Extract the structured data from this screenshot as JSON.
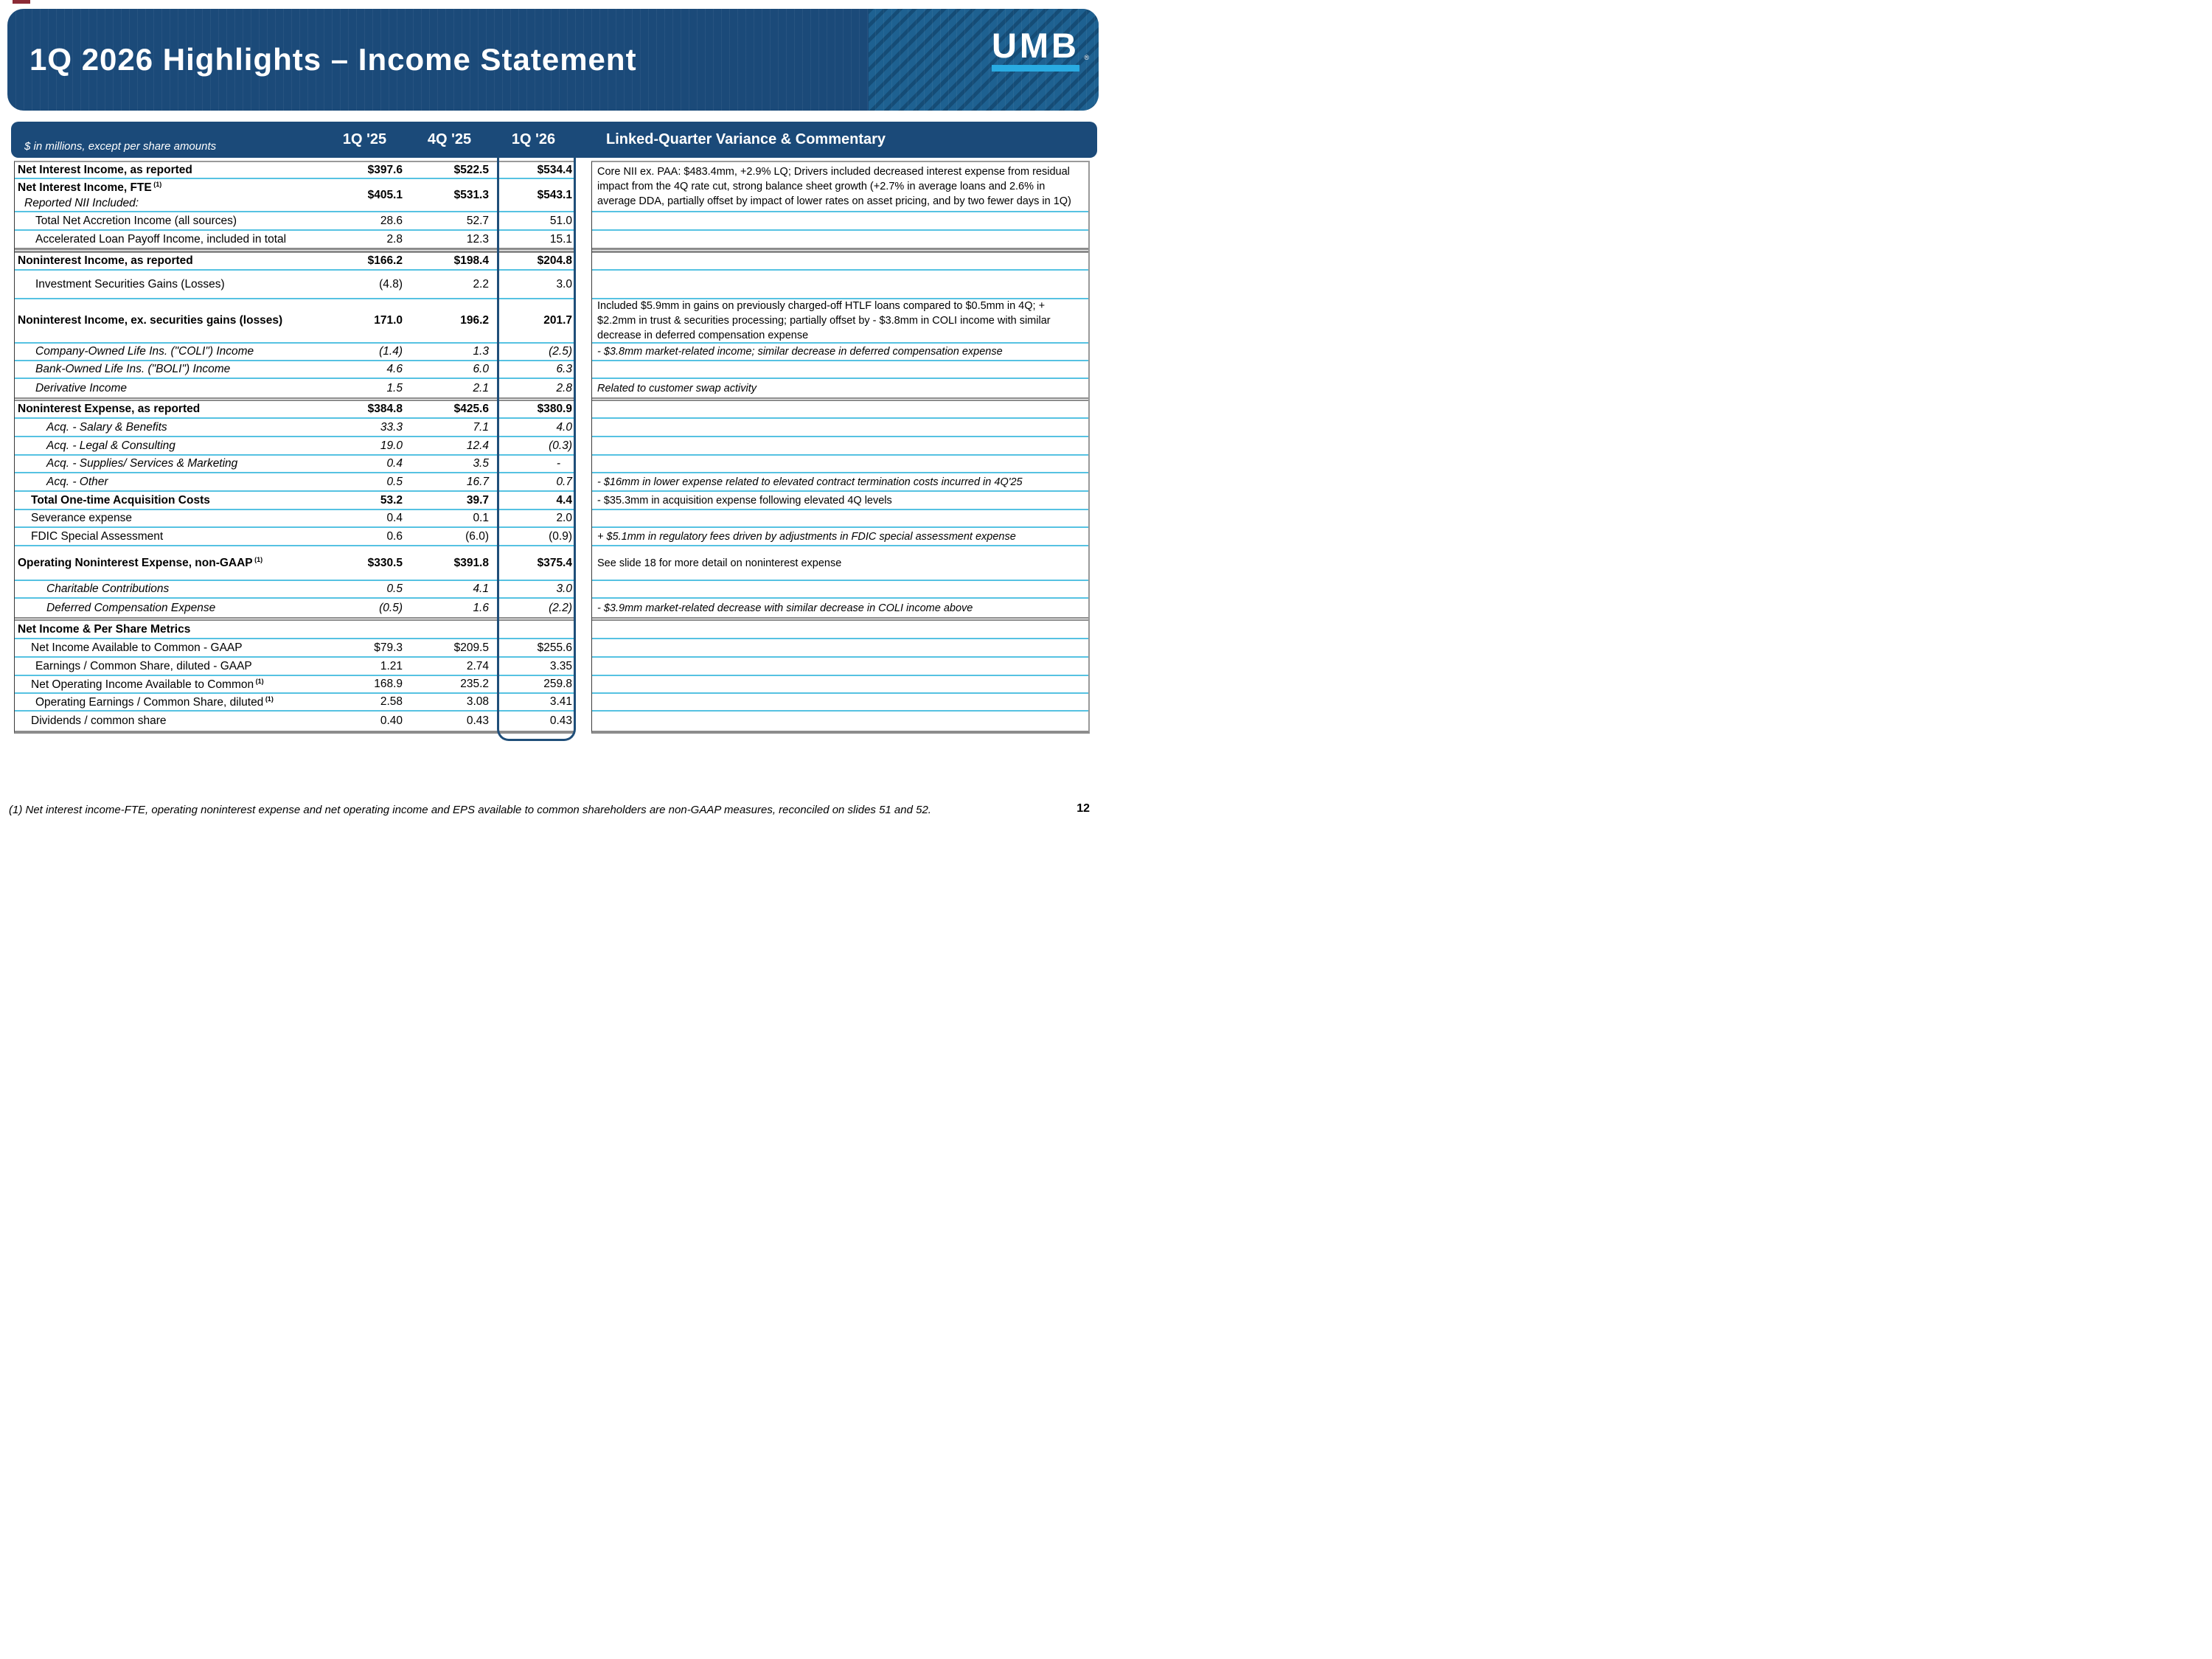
{
  "slide": {
    "title": "1Q 2026 Highlights – Income Statement",
    "logo_text": "UMB",
    "logo_registered_mark": "®",
    "page_number": "12",
    "footnote": "(1) Net interest income-FTE, operating noninterest expense and net operating income and EPS available to common shareholders are non-GAAP measures, reconciled on slides 51 and 52."
  },
  "colors": {
    "header_navy": "#1B4A79",
    "logo_panel_blue": "#1E6191",
    "logo_underline_cyan": "#29ABE2",
    "row_separator_cyan": "#56C2E2",
    "section_divider_gray": "#8C8C8C",
    "highlight_outline_navy": "#1F4E79",
    "top_accent_red": "#8C2B36"
  },
  "table": {
    "subtitle": "$ in millions, except per share amounts",
    "columns": [
      "1Q '25",
      "4Q '25",
      "1Q '26"
    ],
    "highlight_column": "1Q '26",
    "commentary_header": "Linked-Quarter Variance & Commentary",
    "rows": [
      {
        "h": 23,
        "label": "Net Interest Income, as reported",
        "bold": true,
        "indent": 0,
        "values": [
          "$397.6",
          "$522.5",
          "$534.4"
        ]
      },
      {
        "h": 45,
        "label": "Net Interest Income, FTE",
        "sup": "(1)",
        "sublabel": "Reported NII Included:",
        "bold": true,
        "indent": 0,
        "values": [
          "$405.1",
          "$531.3",
          "$543.1"
        ]
      },
      {
        "h": 25,
        "label": "Total Net Accretion Income (all sources)",
        "indent": 3,
        "values": [
          "28.6",
          "52.7",
          "51.0"
        ]
      },
      {
        "h": 23,
        "label": "Accelerated Loan Payoff Income, included in total",
        "indent": 3,
        "values": [
          "2.8",
          "12.3",
          "15.1"
        ]
      },
      {
        "divider": true,
        "h": 7,
        "thick": true
      },
      {
        "h": 24,
        "label": "Noninterest Income, as reported",
        "bold": true,
        "indent": 0,
        "values": [
          "$166.2",
          "$198.4",
          "$204.8"
        ]
      },
      {
        "h": 39,
        "label": "Investment Securities Gains (Losses)",
        "indent": 3,
        "values": [
          "(4.8)",
          "2.2",
          "3.0"
        ]
      },
      {
        "h": 60,
        "label": "Noninterest Income, ex. securities gains (losses)",
        "bold": true,
        "indent": 0,
        "values": [
          "171.0",
          "196.2",
          "201.7"
        ]
      },
      {
        "h": 24,
        "label": "Company-Owned Life Ins. (\"COLI\") Income",
        "italic": true,
        "indent": 3,
        "values": [
          "(1.4)",
          "1.3",
          "(2.5)"
        ]
      },
      {
        "h": 24,
        "label": "Bank-Owned Life Ins. (\"BOLI\") Income",
        "italic": true,
        "indent": 3,
        "values": [
          "4.6",
          "6.0",
          "6.3"
        ]
      },
      {
        "h": 25,
        "label": "Derivative Income",
        "italic": true,
        "indent": 3,
        "values": [
          "1.5",
          "2.1",
          "2.8"
        ]
      },
      {
        "divider": true,
        "h": 5
      },
      {
        "h": 24,
        "label": "Noninterest Expense, as reported",
        "bold": true,
        "indent": 0,
        "values": [
          "$384.8",
          "$425.6",
          "$380.9"
        ]
      },
      {
        "h": 25,
        "label": "Acq. - Salary & Benefits",
        "italic": true,
        "indent": 4,
        "values": [
          "33.3",
          "7.1",
          "4.0"
        ]
      },
      {
        "h": 25,
        "label": "Acq. - Legal & Consulting",
        "italic": true,
        "indent": 4,
        "values": [
          "19.0",
          "12.4",
          "(0.3)"
        ]
      },
      {
        "h": 24,
        "label": "Acq. - Supplies/ Services & Marketing",
        "italic": true,
        "indent": 4,
        "values": [
          "0.4",
          "3.5",
          "-"
        ]
      },
      {
        "h": 25,
        "label": "Acq. - Other",
        "italic": true,
        "indent": 4,
        "values": [
          "0.5",
          "16.7",
          "0.7"
        ]
      },
      {
        "h": 25,
        "label": "Total One-time Acquisition Costs",
        "bold": true,
        "indent": 2,
        "values": [
          "53.2",
          "39.7",
          "4.4"
        ]
      },
      {
        "h": 24,
        "label": "Severance expense",
        "indent": 2,
        "values": [
          "0.4",
          "0.1",
          "2.0"
        ]
      },
      {
        "h": 25,
        "label": "FDIC Special Assessment",
        "indent": 2,
        "values": [
          "0.6",
          "(6.0)",
          "(0.9)"
        ]
      },
      {
        "h": 47,
        "label": "Operating Noninterest Expense, non-GAAP",
        "sup": "(1)",
        "bold": true,
        "indent": 0,
        "values": [
          "$330.5",
          "$391.8",
          "$375.4"
        ]
      },
      {
        "h": 24,
        "label": "Charitable Contributions",
        "italic": true,
        "indent": 4,
        "values": [
          "0.5",
          "4.1",
          "3.0"
        ]
      },
      {
        "h": 25,
        "label": "Deferred Compensation Expense",
        "italic": true,
        "indent": 4,
        "values": [
          "(0.5)",
          "1.6",
          "(2.2)"
        ]
      },
      {
        "divider": true,
        "h": 5
      },
      {
        "h": 25,
        "label": "Net Income & Per Share Metrics",
        "bold": true,
        "indent": 0,
        "values": [
          "",
          "",
          ""
        ]
      },
      {
        "h": 25,
        "label": "Net Income Available to Common - GAAP",
        "indent": 2,
        "values": [
          "$79.3",
          "$209.5",
          "$255.6"
        ]
      },
      {
        "h": 25,
        "label": "Earnings / Common Share, diluted - GAAP",
        "indent": 3,
        "values": [
          "1.21",
          "2.74",
          "3.35"
        ]
      },
      {
        "h": 24,
        "label": "Net Operating Income Available to Common",
        "sup": "(1)",
        "indent": 2,
        "values": [
          "168.9",
          "235.2",
          "259.8"
        ]
      },
      {
        "h": 24,
        "label": "Operating Earnings / Common Share, diluted",
        "sup": "(1)",
        "indent": 3,
        "values": [
          "2.58",
          "3.08",
          "3.41"
        ]
      },
      {
        "h": 26,
        "label": "Dividends / common share",
        "indent": 2,
        "values": [
          "0.40",
          "0.43",
          "0.43"
        ]
      }
    ],
    "commentary_rows": [
      {
        "h": 68,
        "text": "Core NII ex. PAA: $483.4mm, +2.9% LQ; Drivers included decreased interest expense from residual impact from the 4Q rate cut, strong balance sheet growth (+2.7% in average loans and 2.6% in average DDA, partially offset by impact of lower rates on asset pricing, and by two fewer days in 1Q)"
      },
      {
        "h": 25,
        "text": ""
      },
      {
        "h": 23,
        "text": ""
      },
      {
        "divider": true,
        "h": 7,
        "thick": true
      },
      {
        "h": 24,
        "text": ""
      },
      {
        "h": 39,
        "text": ""
      },
      {
        "h": 60,
        "text": "Included $5.9mm in gains on previously charged-off HTLF loans compared to $0.5mm in 4Q; + $2.2mm in trust & securities processing; partially offset by - $3.8mm in COLI income with similar decrease in deferred compensation expense"
      },
      {
        "h": 24,
        "text": "- $3.8mm market-related income; similar decrease in deferred compensation expense",
        "italic": true
      },
      {
        "h": 24,
        "text": ""
      },
      {
        "h": 25,
        "text": "Related to customer swap activity",
        "italic": true
      },
      {
        "divider": true,
        "h": 5
      },
      {
        "h": 24,
        "text": ""
      },
      {
        "h": 25,
        "text": ""
      },
      {
        "h": 25,
        "text": ""
      },
      {
        "h": 24,
        "text": ""
      },
      {
        "h": 25,
        "text": "- $16mm in lower expense related to elevated contract termination costs incurred in 4Q'25",
        "italic": true
      },
      {
        "h": 25,
        "text": "- $35.3mm in acquisition expense following elevated 4Q levels"
      },
      {
        "h": 24,
        "text": ""
      },
      {
        "h": 25,
        "text": "+ $5.1mm in regulatory fees driven by adjustments in FDIC special assessment expense",
        "italic": true
      },
      {
        "h": 47,
        "text": "See slide 18 for more detail on noninterest expense"
      },
      {
        "h": 24,
        "text": ""
      },
      {
        "h": 25,
        "text": "- $3.9mm market-related decrease with similar decrease in COLI income above",
        "italic": true
      },
      {
        "divider": true,
        "h": 5
      },
      {
        "h": 25,
        "text": ""
      },
      {
        "h": 25,
        "text": ""
      },
      {
        "h": 25,
        "text": ""
      },
      {
        "h": 24,
        "text": ""
      },
      {
        "h": 24,
        "text": ""
      },
      {
        "h": 26,
        "text": ""
      }
    ]
  }
}
